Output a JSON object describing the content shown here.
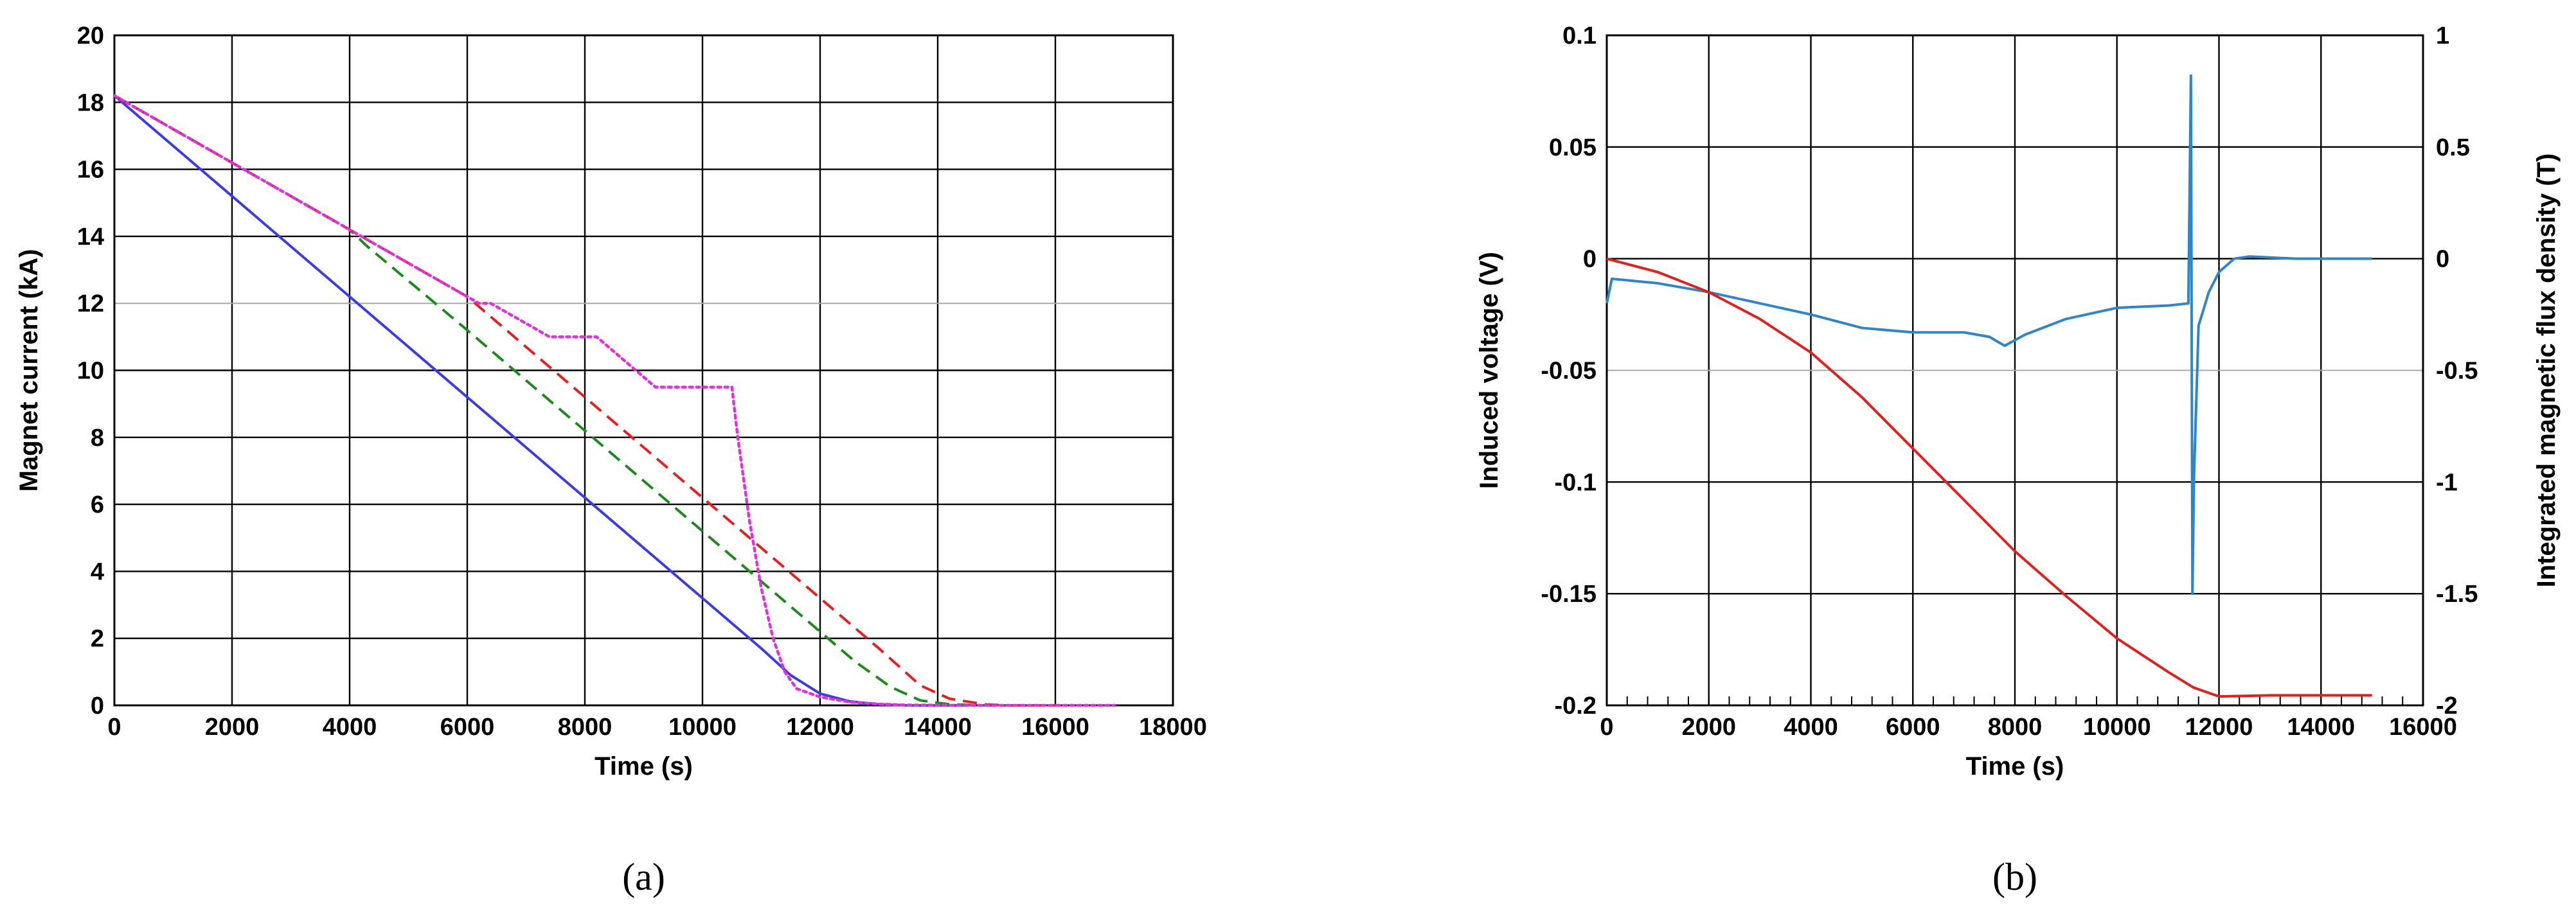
{
  "chart_data": [
    {
      "panel": "a",
      "panel_label": "(a)",
      "type": "line",
      "xlabel": "Time (s)",
      "ylabel": "Magnet current (kA)",
      "xlim": [
        0,
        18000
      ],
      "ylim": [
        0,
        20
      ],
      "xticks": [
        0,
        2000,
        4000,
        6000,
        8000,
        10000,
        12000,
        14000,
        16000,
        18000
      ],
      "yticks": [
        0,
        2,
        4,
        6,
        8,
        10,
        12,
        14,
        16,
        18,
        20
      ],
      "grid": true,
      "series": [
        {
          "color": "#3a3ae8",
          "style": "solid",
          "points": [
            [
              0,
              18.2
            ],
            [
              2000,
              15.2
            ],
            [
              4000,
              12.2
            ],
            [
              6000,
              9.2
            ],
            [
              8000,
              6.2
            ],
            [
              10000,
              3.2
            ],
            [
              11000,
              1.7
            ],
            [
              11500,
              0.9
            ],
            [
              12000,
              0.35
            ],
            [
              12500,
              0.12
            ],
            [
              13000,
              0.03
            ],
            [
              13500,
              0.0
            ],
            [
              14500,
              0.0
            ]
          ]
        },
        {
          "color": "#1a8a1a",
          "style": "dashed",
          "points": [
            [
              0,
              18.2
            ],
            [
              2000,
              16.2
            ],
            [
              4000,
              14.2
            ],
            [
              4300,
              13.7
            ],
            [
              6000,
              11.2
            ],
            [
              8000,
              8.2
            ],
            [
              10000,
              5.2
            ],
            [
              12000,
              2.2
            ],
            [
              12600,
              1.3
            ],
            [
              13200,
              0.55
            ],
            [
              13700,
              0.15
            ],
            [
              14200,
              0.03
            ],
            [
              14800,
              0.0
            ],
            [
              15500,
              0.0
            ]
          ]
        },
        {
          "color": "#e81e1e",
          "style": "dashed",
          "points": [
            [
              0,
              18.2
            ],
            [
              2000,
              16.2
            ],
            [
              4000,
              14.2
            ],
            [
              6000,
              12.2
            ],
            [
              8000,
              9.2
            ],
            [
              10000,
              6.2
            ],
            [
              12000,
              3.2
            ],
            [
              13000,
              1.7
            ],
            [
              13700,
              0.6
            ],
            [
              14200,
              0.2
            ],
            [
              14800,
              0.03
            ],
            [
              15200,
              0.0
            ],
            [
              16000,
              0.0
            ]
          ]
        },
        {
          "color": "#e030e0",
          "style": "dotted",
          "points": [
            [
              0,
              18.2
            ],
            [
              2000,
              16.2
            ],
            [
              4000,
              14.2
            ],
            [
              5500,
              12.7
            ],
            [
              6000,
              12.2
            ],
            [
              6200,
              12.0
            ],
            [
              6400,
              12.0
            ],
            [
              7400,
              11.0
            ],
            [
              8200,
              11.0
            ],
            [
              9200,
              9.5
            ],
            [
              10500,
              9.5
            ],
            [
              10600,
              8.0
            ],
            [
              10800,
              5.5
            ],
            [
              11000,
              3.5
            ],
            [
              11200,
              2.0
            ],
            [
              11400,
              1.0
            ],
            [
              11600,
              0.5
            ],
            [
              12000,
              0.25
            ],
            [
              12500,
              0.1
            ],
            [
              13000,
              0.04
            ],
            [
              13500,
              0.01
            ],
            [
              14500,
              0.0
            ],
            [
              16000,
              0.0
            ],
            [
              17000,
              0.0
            ]
          ]
        }
      ]
    },
    {
      "panel": "b",
      "panel_label": "(b)",
      "type": "line",
      "xlabel": "Time (s)",
      "ylabel": "Induced voltage (V)",
      "y2label": "Integrated magnetic flux density (T)",
      "xlim": [
        0,
        16000
      ],
      "ylim": [
        -0.2,
        0.1
      ],
      "y2lim": [
        -2,
        1
      ],
      "xticks": [
        0,
        2000,
        4000,
        6000,
        8000,
        10000,
        12000,
        14000,
        16000
      ],
      "yticks": [
        -0.2,
        -0.15,
        -0.1,
        -0.05,
        0,
        0.05,
        0.1
      ],
      "ytick_labels": [
        "-0.2",
        "-0.15",
        "-0.1",
        "-0.05",
        "0",
        "0.05",
        "0.1"
      ],
      "y2ticks": [
        -2,
        -1.5,
        -1,
        -0.5,
        0,
        0.5,
        1
      ],
      "y2tick_labels": [
        "-2",
        "-1.5",
        "-1",
        "-0.5",
        "0",
        "0.5",
        "1"
      ],
      "grid": true,
      "series": [
        {
          "axis": "left",
          "color": "#2e86c8",
          "style": "solid",
          "points": [
            [
              0,
              -0.02
            ],
            [
              100,
              -0.009
            ],
            [
              1000,
              -0.011
            ],
            [
              2000,
              -0.015
            ],
            [
              3000,
              -0.02
            ],
            [
              4000,
              -0.025
            ],
            [
              5000,
              -0.031
            ],
            [
              6000,
              -0.033
            ],
            [
              7000,
              -0.033
            ],
            [
              7500,
              -0.035
            ],
            [
              7800,
              -0.039
            ],
            [
              8200,
              -0.034
            ],
            [
              9000,
              -0.027
            ],
            [
              10000,
              -0.022
            ],
            [
              11000,
              -0.021
            ],
            [
              11400,
              -0.02
            ],
            [
              11450,
              0.082
            ],
            [
              11480,
              -0.15
            ],
            [
              11510,
              -0.098
            ],
            [
              11600,
              -0.03
            ],
            [
              11800,
              -0.015
            ],
            [
              12000,
              -0.006
            ],
            [
              12300,
              0.0
            ],
            [
              12600,
              0.001
            ],
            [
              13500,
              0.0
            ],
            [
              15000,
              0.0
            ]
          ]
        },
        {
          "axis": "right",
          "color": "#e0201a",
          "style": "solid",
          "points": [
            [
              0,
              0.0
            ],
            [
              1000,
              -0.06
            ],
            [
              2000,
              -0.15
            ],
            [
              3000,
              -0.27
            ],
            [
              4000,
              -0.42
            ],
            [
              5000,
              -0.62
            ],
            [
              6000,
              -0.85
            ],
            [
              7000,
              -1.08
            ],
            [
              8000,
              -1.31
            ],
            [
              9000,
              -1.51
            ],
            [
              10000,
              -1.7
            ],
            [
              11000,
              -1.85
            ],
            [
              11500,
              -1.92
            ],
            [
              12000,
              -1.96
            ],
            [
              13000,
              -1.955
            ],
            [
              15000,
              -1.955
            ]
          ]
        }
      ]
    }
  ]
}
